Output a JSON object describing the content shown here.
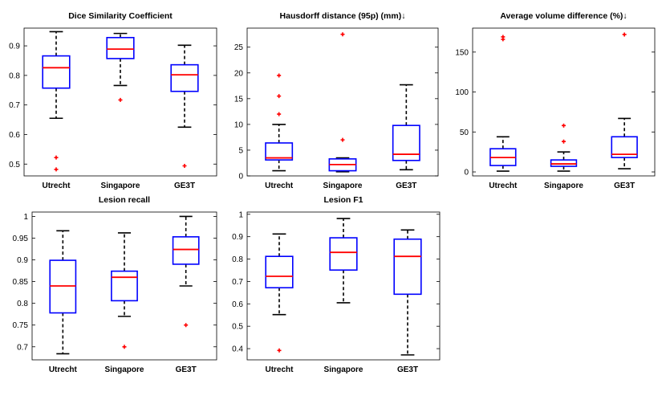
{
  "chart_data": [
    {
      "type": "boxplot",
      "title": "Dice Similarity Coefficient",
      "categories": [
        "Utrecht",
        "Singapore",
        "GE3T"
      ],
      "ylim": [
        0.46,
        0.96
      ],
      "yticks": [
        0.5,
        0.6,
        0.7,
        0.8,
        0.9
      ],
      "ytick_labels": [
        "0.5",
        "0.6",
        "0.7",
        "0.8",
        "0.9"
      ],
      "series": [
        {
          "name": "Utrecht",
          "whisker_low": 0.655,
          "q1": 0.757,
          "median": 0.826,
          "q3": 0.866,
          "whisker_high": 0.948,
          "outliers": [
            0.522,
            0.482
          ]
        },
        {
          "name": "Singapore",
          "whisker_low": 0.766,
          "q1": 0.857,
          "median": 0.889,
          "q3": 0.928,
          "whisker_high": 0.942,
          "outliers": [
            0.717
          ]
        },
        {
          "name": "GE3T",
          "whisker_low": 0.625,
          "q1": 0.746,
          "median": 0.802,
          "q3": 0.836,
          "whisker_high": 0.902,
          "outliers": [
            0.494
          ]
        }
      ]
    },
    {
      "type": "boxplot",
      "title": "Hausdorff distance (95p) (mm)↓",
      "categories": [
        "Utrecht",
        "Singapore",
        "GE3T"
      ],
      "ylim": [
        0,
        28.7
      ],
      "yticks": [
        0,
        5,
        10,
        15,
        20,
        25
      ],
      "ytick_labels": [
        "0",
        "5",
        "10",
        "15",
        "20",
        "25"
      ],
      "series": [
        {
          "name": "Utrecht",
          "whisker_low": 1.0,
          "q1": 3.1,
          "median": 3.5,
          "q3": 6.4,
          "whisker_high": 10.0,
          "outliers": [
            19.5,
            15.5,
            12.0
          ]
        },
        {
          "name": "Singapore",
          "whisker_low": 0.8,
          "q1": 1.0,
          "median": 2.2,
          "q3": 3.3,
          "whisker_high": 3.5,
          "outliers": [
            27.5,
            7.0
          ]
        },
        {
          "name": "GE3T",
          "whisker_low": 1.2,
          "q1": 3.0,
          "median": 4.2,
          "q3": 9.8,
          "whisker_high": 17.7,
          "outliers": []
        }
      ]
    },
    {
      "type": "boxplot",
      "title": "Average volume difference  (%)↓",
      "categories": [
        "Utrecht",
        "Singapore",
        "GE3T"
      ],
      "ylim": [
        -5,
        180
      ],
      "yticks": [
        0,
        50,
        100,
        150
      ],
      "ytick_labels": [
        "0",
        "50",
        "100",
        "150"
      ],
      "series": [
        {
          "name": "Utrecht",
          "whisker_low": 1,
          "q1": 8,
          "median": 18,
          "q3": 29,
          "whisker_high": 44,
          "outliers": [
            169,
            166
          ]
        },
        {
          "name": "Singapore",
          "whisker_low": 1,
          "q1": 7,
          "median": 10,
          "q3": 15,
          "whisker_high": 25,
          "outliers": [
            58,
            38
          ]
        },
        {
          "name": "GE3T",
          "whisker_low": 4,
          "q1": 18,
          "median": 22,
          "q3": 44,
          "whisker_high": 67,
          "outliers": [
            172
          ]
        }
      ]
    },
    {
      "type": "boxplot",
      "title": "Lesion recall",
      "categories": [
        "Utrecht",
        "Singapore",
        "GE3T"
      ],
      "ylim": [
        0.67,
        1.01
      ],
      "yticks": [
        0.7,
        0.75,
        0.8,
        0.85,
        0.9,
        0.95,
        1.0
      ],
      "ytick_labels": [
        "0.7",
        "0.75",
        "0.8",
        "0.85",
        "0.9",
        "0.95",
        "1"
      ],
      "series": [
        {
          "name": "Utrecht",
          "whisker_low": 0.684,
          "q1": 0.778,
          "median": 0.84,
          "q3": 0.899,
          "whisker_high": 0.967,
          "outliers": []
        },
        {
          "name": "Singapore",
          "whisker_low": 0.77,
          "q1": 0.806,
          "median": 0.86,
          "q3": 0.874,
          "whisker_high": 0.962,
          "outliers": [
            0.7
          ]
        },
        {
          "name": "GE3T",
          "whisker_low": 0.84,
          "q1": 0.89,
          "median": 0.924,
          "q3": 0.953,
          "whisker_high": 1.0,
          "outliers": [
            0.75
          ]
        }
      ]
    },
    {
      "type": "boxplot",
      "title": "Lesion F1",
      "categories": [
        "Utrecht",
        "Singapore",
        "GE3T"
      ],
      "ylim": [
        0.35,
        1.01
      ],
      "yticks": [
        0.4,
        0.5,
        0.6,
        0.7,
        0.8,
        0.9,
        1.0
      ],
      "ytick_labels": [
        "0.4",
        "0.5",
        "0.6",
        "0.7",
        "0.8",
        "0.9",
        "1"
      ],
      "series": [
        {
          "name": "Utrecht",
          "whisker_low": 0.552,
          "q1": 0.672,
          "median": 0.723,
          "q3": 0.812,
          "whisker_high": 0.912,
          "outliers": [
            0.392
          ]
        },
        {
          "name": "Singapore",
          "whisker_low": 0.605,
          "q1": 0.751,
          "median": 0.83,
          "q3": 0.895,
          "whisker_high": 0.981,
          "outliers": []
        },
        {
          "name": "GE3T",
          "whisker_low": 0.372,
          "q1": 0.643,
          "median": 0.812,
          "q3": 0.889,
          "whisker_high": 0.93,
          "outliers": []
        }
      ]
    }
  ]
}
